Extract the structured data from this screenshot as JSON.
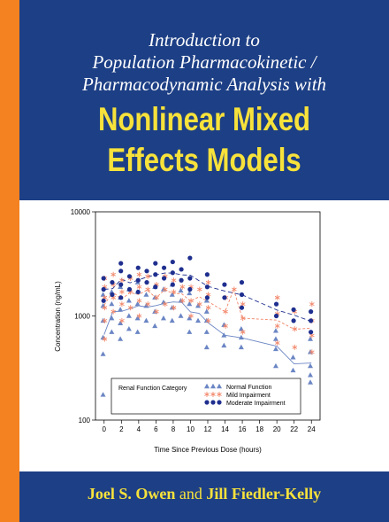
{
  "cover": {
    "title_line1": "Introduction to",
    "title_line2": "Population Pharmacokinetic /",
    "title_line3": "Pharmacodynamic Analysis with",
    "big_line1": "Nonlinear Mixed",
    "big_line2": "Effects Models",
    "author1": "Joel S. Owen",
    "author_joiner": "and",
    "author2": "Jill Fiedler-Kelly"
  },
  "colors": {
    "spine": "#f58220",
    "band": "#1d3f85",
    "title_yellow": "#f7e23b",
    "normal": "#6b86c4",
    "mild": "#f2876a",
    "moderate": "#1f2f8f"
  },
  "chart_data": {
    "type": "scatter",
    "xlabel": "Time Since Previous Dose (hours)",
    "ylabel": "Concentration (ng/mL)",
    "x_ticks": [
      0,
      2,
      4,
      6,
      8,
      10,
      12,
      14,
      16,
      18,
      20,
      22,
      24
    ],
    "y_ticks": [
      100,
      1000,
      10000
    ],
    "xlim": [
      -1,
      25
    ],
    "ylim": [
      100,
      10000
    ],
    "y_scale": "log",
    "legend_title": "Renal Function Category",
    "legend_placement": "bottom",
    "series": [
      {
        "name": "Normal Function",
        "marker": "triangle",
        "points": [
          [
            0,
            175
          ],
          [
            0,
            430
          ],
          [
            0,
            620
          ],
          [
            0,
            900
          ],
          [
            0,
            1250
          ],
          [
            0,
            1600
          ],
          [
            1,
            700
          ],
          [
            1,
            950
          ],
          [
            1,
            1300
          ],
          [
            1,
            1700
          ],
          [
            2,
            600
          ],
          [
            2,
            850
          ],
          [
            2,
            1150
          ],
          [
            2,
            1500
          ],
          [
            2,
            1900
          ],
          [
            3,
            750
          ],
          [
            3,
            1000
          ],
          [
            3,
            1400
          ],
          [
            3,
            1800
          ],
          [
            4,
            700
          ],
          [
            4,
            950
          ],
          [
            4,
            1300
          ],
          [
            4,
            1700
          ],
          [
            4,
            2100
          ],
          [
            5,
            900
          ],
          [
            5,
            1250
          ],
          [
            5,
            1600
          ],
          [
            6,
            800
          ],
          [
            6,
            1100
          ],
          [
            6,
            1500
          ],
          [
            6,
            1900
          ],
          [
            7,
            950
          ],
          [
            7,
            1350
          ],
          [
            7,
            1800
          ],
          [
            8,
            900
          ],
          [
            8,
            1200
          ],
          [
            8,
            1600
          ],
          [
            8,
            2000
          ],
          [
            9,
            1000
          ],
          [
            9,
            1400
          ],
          [
            9,
            1750
          ],
          [
            10,
            700
          ],
          [
            10,
            950
          ],
          [
            10,
            1300
          ],
          [
            10,
            1650
          ],
          [
            11,
            900
          ],
          [
            11,
            1250
          ],
          [
            12,
            500
          ],
          [
            12,
            700
          ],
          [
            12,
            900
          ],
          [
            12,
            1100
          ],
          [
            12,
            1400
          ],
          [
            14,
            520
          ],
          [
            14,
            650
          ],
          [
            14,
            820
          ],
          [
            16,
            500
          ],
          [
            16,
            620
          ],
          [
            16,
            750
          ],
          [
            20,
            330
          ],
          [
            20,
            480
          ],
          [
            20,
            600
          ],
          [
            20,
            720
          ],
          [
            22,
            300
          ],
          [
            22,
            400
          ],
          [
            24,
            230
          ],
          [
            24,
            270
          ],
          [
            24,
            330
          ],
          [
            24,
            450
          ],
          [
            24,
            600
          ]
        ]
      },
      {
        "name": "Mild Impairment",
        "marker": "asterisk",
        "points": [
          [
            0,
            600
          ],
          [
            0,
            900
          ],
          [
            0,
            1200
          ],
          [
            0,
            1500
          ],
          [
            0,
            1900
          ],
          [
            0,
            2300
          ],
          [
            1,
            1100
          ],
          [
            1,
            1500
          ],
          [
            1,
            2000
          ],
          [
            1,
            2500
          ],
          [
            2,
            900
          ],
          [
            2,
            1300
          ],
          [
            2,
            1700
          ],
          [
            2,
            2200
          ],
          [
            3,
            1200
          ],
          [
            3,
            1700
          ],
          [
            3,
            2300
          ],
          [
            4,
            1000
          ],
          [
            4,
            1400
          ],
          [
            4,
            1900
          ],
          [
            4,
            2500
          ],
          [
            5,
            1300
          ],
          [
            5,
            1800
          ],
          [
            5,
            2400
          ],
          [
            6,
            1100
          ],
          [
            6,
            1500
          ],
          [
            6,
            2000
          ],
          [
            7,
            1300
          ],
          [
            7,
            1800
          ],
          [
            7,
            2400
          ],
          [
            8,
            1200
          ],
          [
            8,
            1700
          ],
          [
            8,
            2200
          ],
          [
            9,
            1400
          ],
          [
            9,
            1900
          ],
          [
            10,
            1000
          ],
          [
            10,
            1400
          ],
          [
            10,
            1900
          ],
          [
            11,
            1300
          ],
          [
            11,
            1800
          ],
          [
            12,
            900
          ],
          [
            12,
            1200
          ],
          [
            12,
            1600
          ],
          [
            12,
            2100
          ],
          [
            14,
            800
          ],
          [
            14,
            1100
          ],
          [
            14,
            1500
          ],
          [
            15,
            1800
          ],
          [
            16,
            700
          ],
          [
            16,
            950
          ],
          [
            16,
            1300
          ],
          [
            20,
            550
          ],
          [
            20,
            800
          ],
          [
            20,
            1050
          ],
          [
            20,
            1500
          ],
          [
            22,
            500
          ],
          [
            22,
            750
          ],
          [
            22,
            1100
          ],
          [
            24,
            450
          ],
          [
            24,
            650
          ],
          [
            24,
            900
          ],
          [
            24,
            1300
          ]
        ]
      },
      {
        "name": "Moderate Impairment",
        "marker": "circle",
        "points": [
          [
            0,
            1400
          ],
          [
            0,
            1800
          ],
          [
            0,
            2300
          ],
          [
            1,
            1600
          ],
          [
            1,
            2100
          ],
          [
            2,
            1500
          ],
          [
            2,
            2000
          ],
          [
            2,
            2700
          ],
          [
            2,
            3200
          ],
          [
            3,
            1800
          ],
          [
            3,
            2400
          ],
          [
            4,
            1700
          ],
          [
            4,
            2200
          ],
          [
            4,
            2900
          ],
          [
            5,
            2100
          ],
          [
            5,
            2700
          ],
          [
            6,
            1900
          ],
          [
            6,
            2500
          ],
          [
            6,
            3200
          ],
          [
            7,
            2300
          ],
          [
            7,
            2900
          ],
          [
            8,
            2000
          ],
          [
            8,
            2600
          ],
          [
            8,
            3300
          ],
          [
            9,
            2200
          ],
          [
            9,
            2800
          ],
          [
            10,
            1800
          ],
          [
            10,
            2300
          ],
          [
            10,
            3600
          ],
          [
            12,
            1500
          ],
          [
            12,
            1900
          ],
          [
            12,
            2500
          ],
          [
            14,
            1500
          ],
          [
            14,
            2000
          ],
          [
            16,
            1200
          ],
          [
            16,
            1600
          ],
          [
            16,
            2100
          ],
          [
            20,
            1000
          ],
          [
            20,
            1300
          ],
          [
            22,
            900
          ],
          [
            22,
            1150
          ],
          [
            24,
            700
          ],
          [
            24,
            900
          ],
          [
            24,
            1100
          ]
        ]
      }
    ]
  }
}
